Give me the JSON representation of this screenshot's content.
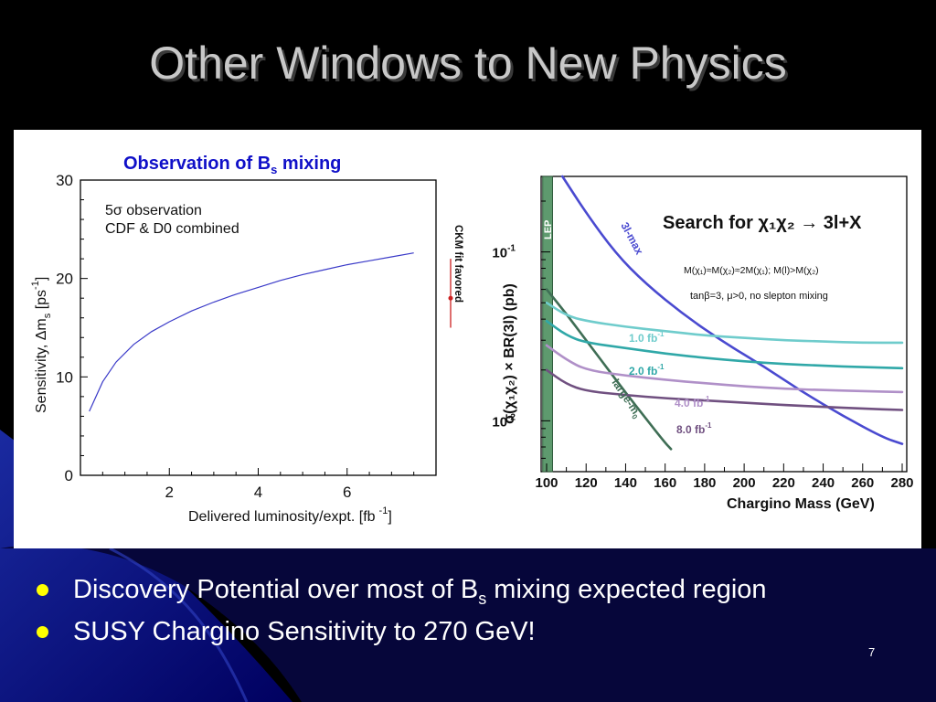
{
  "slide": {
    "title": "Other Windows to New Physics",
    "page_number": "7",
    "bullets": [
      {
        "pre": "Discovery Potential over most of B",
        "sub": "s",
        "post": " mixing expected region"
      },
      {
        "pre": "SUSY Chargino Sensitivity to 270 GeV!",
        "sub": "",
        "post": ""
      }
    ],
    "bullet_color": "#ffff00"
  },
  "figures": {
    "left": {
      "title_pre": "Observation of B",
      "title_sub": "s",
      "title_post": " mixing",
      "annotation_line1": "5σ observation",
      "annotation_line2": "CDF & D0 combined",
      "xlabel": "Delivered luminosity/expt. [fb",
      "xlabel_sup": "-1",
      "xlabel_end": "]",
      "ylabel": "Sensitivity, Δm",
      "ylabel_sub": "s",
      "ylabel_unit": " [ps",
      "ylabel_sup": "-1",
      "ylabel_end": "]",
      "x_ticks": [
        "2",
        "4",
        "6"
      ],
      "y_ticks": [
        "0",
        "10",
        "20",
        "30"
      ],
      "ckm_label": "CKM fit favored"
    },
    "right": {
      "title": "Search for χ₁χ₂ → 3l+X",
      "cond_line1": "M(χ₁)≈M(χ₂)≈2M(χ₁); M(l)>M(χ₂)",
      "cond_line2": "tanβ=3, μ>0, no slepton mixing",
      "xlabel": "Chargino Mass (GeV)",
      "ylabel": "σ(χ₁χ₂) × BR(3l) (pb)",
      "x_ticks": [
        "100",
        "120",
        "140",
        "160",
        "180",
        "200",
        "220",
        "240",
        "260",
        "280"
      ],
      "y_ticks": [
        "10",
        "10"
      ],
      "y_tick_sups": [
        "-1",
        "-2"
      ],
      "lep_label": "LEP",
      "curve_labels": [
        "3l-max",
        "large-m",
        "1.0 fb",
        "2.0 fb",
        "4.0 fb",
        "8.0 fb"
      ],
      "curve_label_sups": [
        "",
        "0",
        "-1",
        "-1",
        "-1",
        "-1"
      ]
    }
  },
  "chart_data": [
    {
      "type": "line",
      "title": "Observation of Bs mixing",
      "xlabel": "Delivered luminosity/expt. [fb-1]",
      "ylabel": "Sensitivity, Δms [ps-1]",
      "xlim": [
        0,
        8
      ],
      "ylim": [
        0,
        30
      ],
      "series": [
        {
          "x": [
            0.2,
            0.5,
            0.8,
            1.2,
            1.6,
            2.0,
            2.5,
            3.0,
            3.5,
            4.0,
            4.5,
            5.0,
            5.5,
            6.0,
            6.5,
            7.0,
            7.5
          ],
          "y": [
            6.5,
            9.5,
            11.5,
            13.3,
            14.6,
            15.6,
            16.7,
            17.6,
            18.4,
            19.1,
            19.8,
            20.4,
            20.9,
            21.4,
            21.8,
            22.2,
            22.6
          ]
        }
      ],
      "markers": [
        {
          "label": "CKM fit favored",
          "y_range": [
            15,
            22
          ],
          "y_center": 18
        }
      ],
      "grid": false
    },
    {
      "type": "line",
      "title": "Search for χ1χ2 → 3l+X",
      "xlabel": "Chargino Mass (GeV)",
      "ylabel": "σ(χ1χ2) × BR(3l) (pb)",
      "xlim": [
        100,
        280
      ],
      "ylim": [
        0.005,
        0.28
      ],
      "y_scale": "log",
      "shaded_regions": [
        {
          "label": "LEP",
          "x_range": [
            98,
            103
          ]
        }
      ],
      "series": [
        {
          "name": "3l-max",
          "color": "#4a4ad0",
          "x": [
            108,
            120,
            135,
            150,
            170,
            190,
            210,
            230,
            250,
            270,
            280
          ],
          "y": [
            0.28,
            0.17,
            0.098,
            0.065,
            0.042,
            0.029,
            0.021,
            0.0147,
            0.0107,
            0.008,
            0.0073
          ]
        },
        {
          "name": "large-m0",
          "color": "#3f6e55",
          "x": [
            100,
            110,
            120,
            130,
            140,
            150,
            160,
            163
          ],
          "y": [
            0.06,
            0.043,
            0.03,
            0.021,
            0.0147,
            0.0104,
            0.0074,
            0.0068
          ]
        },
        {
          "name": "1.0 fb-1",
          "color": "#6fcccc",
          "x": [
            100,
            110,
            120,
            140,
            160,
            180,
            200,
            220,
            240,
            260,
            280
          ],
          "y": [
            0.05,
            0.042,
            0.039,
            0.036,
            0.034,
            0.032,
            0.031,
            0.03,
            0.0295,
            0.029,
            0.029
          ]
        },
        {
          "name": "2.0 fb-1",
          "color": "#30a8a8",
          "x": [
            100,
            110,
            120,
            140,
            160,
            180,
            200,
            220,
            240,
            260,
            280
          ],
          "y": [
            0.039,
            0.032,
            0.029,
            0.027,
            0.025,
            0.0236,
            0.0225,
            0.0217,
            0.0212,
            0.0208,
            0.0205
          ]
        },
        {
          "name": "4.0 fb-1",
          "color": "#b090c8",
          "x": [
            100,
            110,
            120,
            140,
            160,
            180,
            200,
            220,
            240,
            260,
            280
          ],
          "y": [
            0.028,
            0.023,
            0.02,
            0.0185,
            0.0175,
            0.0167,
            0.016,
            0.0155,
            0.0152,
            0.015,
            0.0148
          ]
        },
        {
          "name": "8.0 fb-1",
          "color": "#705080",
          "x": [
            100,
            110,
            120,
            140,
            160,
            180,
            200,
            220,
            240,
            260,
            280
          ],
          "y": [
            0.02,
            0.0165,
            0.015,
            0.0142,
            0.0136,
            0.0132,
            0.0128,
            0.0124,
            0.0121,
            0.0118,
            0.0116
          ]
        }
      ],
      "grid": false
    }
  ]
}
